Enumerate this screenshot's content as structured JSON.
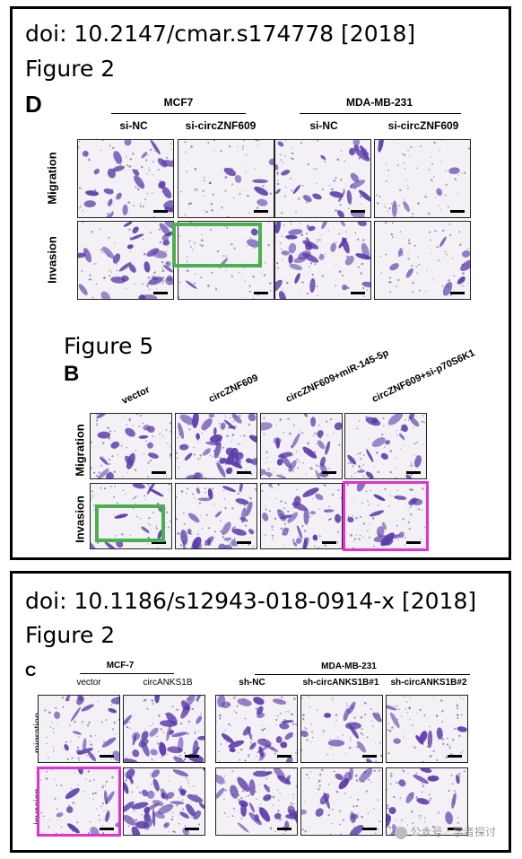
{
  "panel1": {
    "doi": "doi: 10.2147/cmar.s174778 [2018]",
    "figure_a": "Figure 2",
    "letter_a": "D",
    "groups": [
      "MCF7",
      "MDA-MB-231"
    ],
    "columns": [
      "si-NC",
      "si-circZNF609",
      "si-NC",
      "si-circZNF609"
    ],
    "rows": [
      "Migration",
      "Invasion"
    ],
    "figure_b": "Figure 5",
    "letter_b": "B",
    "columns_b": [
      "vector",
      "circZNF609",
      "circZNF609+miR-145-5p",
      "circZNF609+si-p70S6K1"
    ],
    "rows_b": [
      "Migration",
      "Invasion"
    ]
  },
  "panel2": {
    "doi": "doi: 10.1186/s12943-018-0914-x [2018]",
    "figure": "Figure 2",
    "letter": "C",
    "groups": [
      "MCF-7",
      "MDA-MB-231"
    ],
    "columns": [
      "vector",
      "circANKS1B",
      "sh-NC",
      "sh-circANKS1B#1",
      "sh-circANKS1B#2"
    ],
    "rows": [
      "migration",
      "invasion"
    ]
  },
  "watermark": "公众号 · 学者探讨",
  "colors": {
    "stain": "#5a3aa8",
    "highlight_green": "#4cb04f",
    "highlight_magenta": "#e42fd2"
  }
}
